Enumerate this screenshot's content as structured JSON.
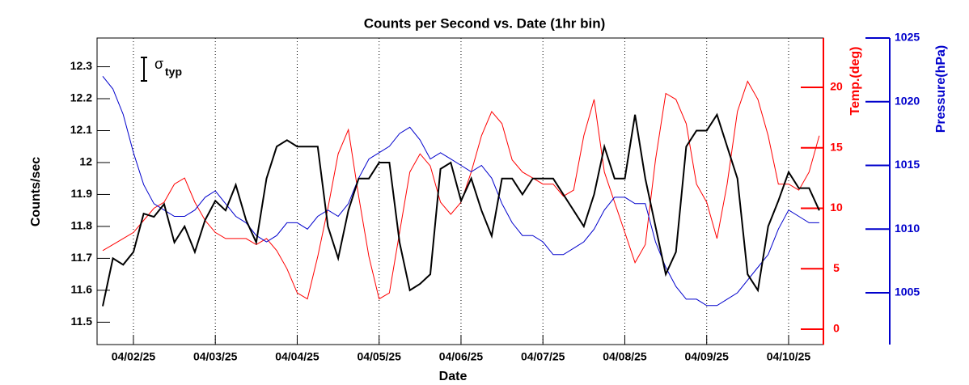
{
  "chart_data": {
    "type": "line",
    "title": "Counts per Second vs. Date (1hr bin)",
    "x_label": "Date",
    "y_label": "Counts/sec",
    "y2_label": "Temp.(deg)",
    "y3_label": "Pressure(hPa)",
    "annotation": {
      "symbol": "σ",
      "subscript": "typ"
    },
    "grid": true,
    "xlim": [
      1.556,
      10.425
    ],
    "xticks": [
      {
        "value": 2,
        "label": "04/02/25"
      },
      {
        "value": 3,
        "label": "04/03/25"
      },
      {
        "value": 4,
        "label": "04/04/25"
      },
      {
        "value": 5,
        "label": "04/05/25"
      },
      {
        "value": 6,
        "label": "04/06/25"
      },
      {
        "value": 7,
        "label": "04/07/25"
      },
      {
        "value": 8,
        "label": "04/08/25"
      },
      {
        "value": 9,
        "label": "04/09/25"
      },
      {
        "value": 10,
        "label": "04/10/25"
      }
    ],
    "ylim": [
      11.43,
      12.39
    ],
    "yticks": [
      11.5,
      11.6,
      11.7,
      11.8,
      11.9,
      12,
      12.1,
      12.2,
      12.3
    ],
    "y2lim": [
      -1.27,
      24.08
    ],
    "y2ticks": [
      0,
      5,
      10,
      15,
      20
    ],
    "y2color": "#ff0000",
    "y3lim": [
      1000.94,
      1025
    ],
    "y3ticks": [
      1005,
      1010,
      1015,
      1020,
      1025
    ],
    "y3color": "#0000cc",
    "x": [
      1.625,
      1.75,
      1.875,
      2,
      2.125,
      2.25,
      2.375,
      2.5,
      2.625,
      2.75,
      2.875,
      3,
      3.125,
      3.25,
      3.375,
      3.5,
      3.625,
      3.75,
      3.875,
      4,
      4.125,
      4.25,
      4.375,
      4.5,
      4.625,
      4.75,
      4.875,
      5,
      5.125,
      5.25,
      5.375,
      5.5,
      5.625,
      5.75,
      5.875,
      6,
      6.125,
      6.25,
      6.375,
      6.5,
      6.625,
      6.75,
      6.875,
      7,
      7.125,
      7.25,
      7.375,
      7.5,
      7.625,
      7.75,
      7.875,
      8,
      8.125,
      8.25,
      8.375,
      8.5,
      8.625,
      8.75,
      8.875,
      9,
      9.125,
      9.25,
      9.375,
      9.5,
      9.625,
      9.75,
      9.875,
      10,
      10.125,
      10.25,
      10.375
    ],
    "series": [
      {
        "name": "Counts",
        "color": "#000000",
        "axis": "y",
        "width": 2,
        "values": [
          11.55,
          11.7,
          11.68,
          11.72,
          11.84,
          11.83,
          11.87,
          11.75,
          11.8,
          11.72,
          11.82,
          11.88,
          11.85,
          11.93,
          11.82,
          11.75,
          11.95,
          12.05,
          12.07,
          12.05,
          12.05,
          12.05,
          11.8,
          11.7,
          11.85,
          11.95,
          11.95,
          12.0,
          12.0,
          11.75,
          11.6,
          11.62,
          11.65,
          11.98,
          12.0,
          11.88,
          11.95,
          11.85,
          11.77,
          11.95,
          11.95,
          11.9,
          11.95,
          11.95,
          11.95,
          11.9,
          11.85,
          11.8,
          11.9,
          12.05,
          11.95,
          11.95,
          12.15,
          11.95,
          11.8,
          11.65,
          11.72,
          12.05,
          12.1,
          12.1,
          12.15,
          12.05,
          11.95,
          11.65,
          11.6,
          11.8,
          11.88,
          11.97,
          11.92,
          11.92,
          11.85
        ]
      },
      {
        "name": "Temp",
        "color": "#ff0000",
        "axis": "y2",
        "width": 1,
        "values": [
          6.5,
          7,
          7.5,
          8,
          9,
          10,
          10.5,
          12,
          12.5,
          10.5,
          9,
          8,
          7.5,
          7.5,
          7.5,
          7,
          7.5,
          6.5,
          5,
          3,
          2.5,
          6,
          10,
          14.5,
          16.5,
          11,
          6,
          2.5,
          3,
          8,
          13,
          14.5,
          13.5,
          10.5,
          9.5,
          10.5,
          13,
          16,
          18,
          17,
          14,
          13,
          12.5,
          12,
          12,
          11,
          11.5,
          16,
          19,
          13,
          10.5,
          8,
          5.5,
          7,
          14,
          19.5,
          19,
          17,
          12,
          10.5,
          7.5,
          12,
          18,
          20.5,
          19,
          16,
          12,
          12,
          11.5,
          13,
          16
        ]
      },
      {
        "name": "Pressure",
        "color": "#0000cc",
        "axis": "y3",
        "width": 1,
        "values": [
          1022,
          1021,
          1019,
          1016,
          1013.5,
          1012,
          1011.5,
          1011,
          1011,
          1011.5,
          1012.5,
          1013,
          1012,
          1011,
          1010.5,
          1009.5,
          1009,
          1009.5,
          1010.5,
          1010.5,
          1010,
          1011,
          1011.5,
          1011,
          1012,
          1014,
          1015.5,
          1016,
          1016.5,
          1017.5,
          1018,
          1017,
          1015.5,
          1016,
          1015.5,
          1015,
          1014.5,
          1015,
          1014,
          1012,
          1010.5,
          1009.5,
          1009.5,
          1009,
          1008,
          1008,
          1008.5,
          1009,
          1010,
          1011.5,
          1012.5,
          1012.5,
          1012,
          1012,
          1009,
          1007,
          1005.5,
          1004.5,
          1004.5,
          1004,
          1004,
          1004.5,
          1005,
          1006,
          1007,
          1008,
          1010,
          1011.5,
          1011,
          1010.5,
          1010.5
        ]
      }
    ]
  }
}
